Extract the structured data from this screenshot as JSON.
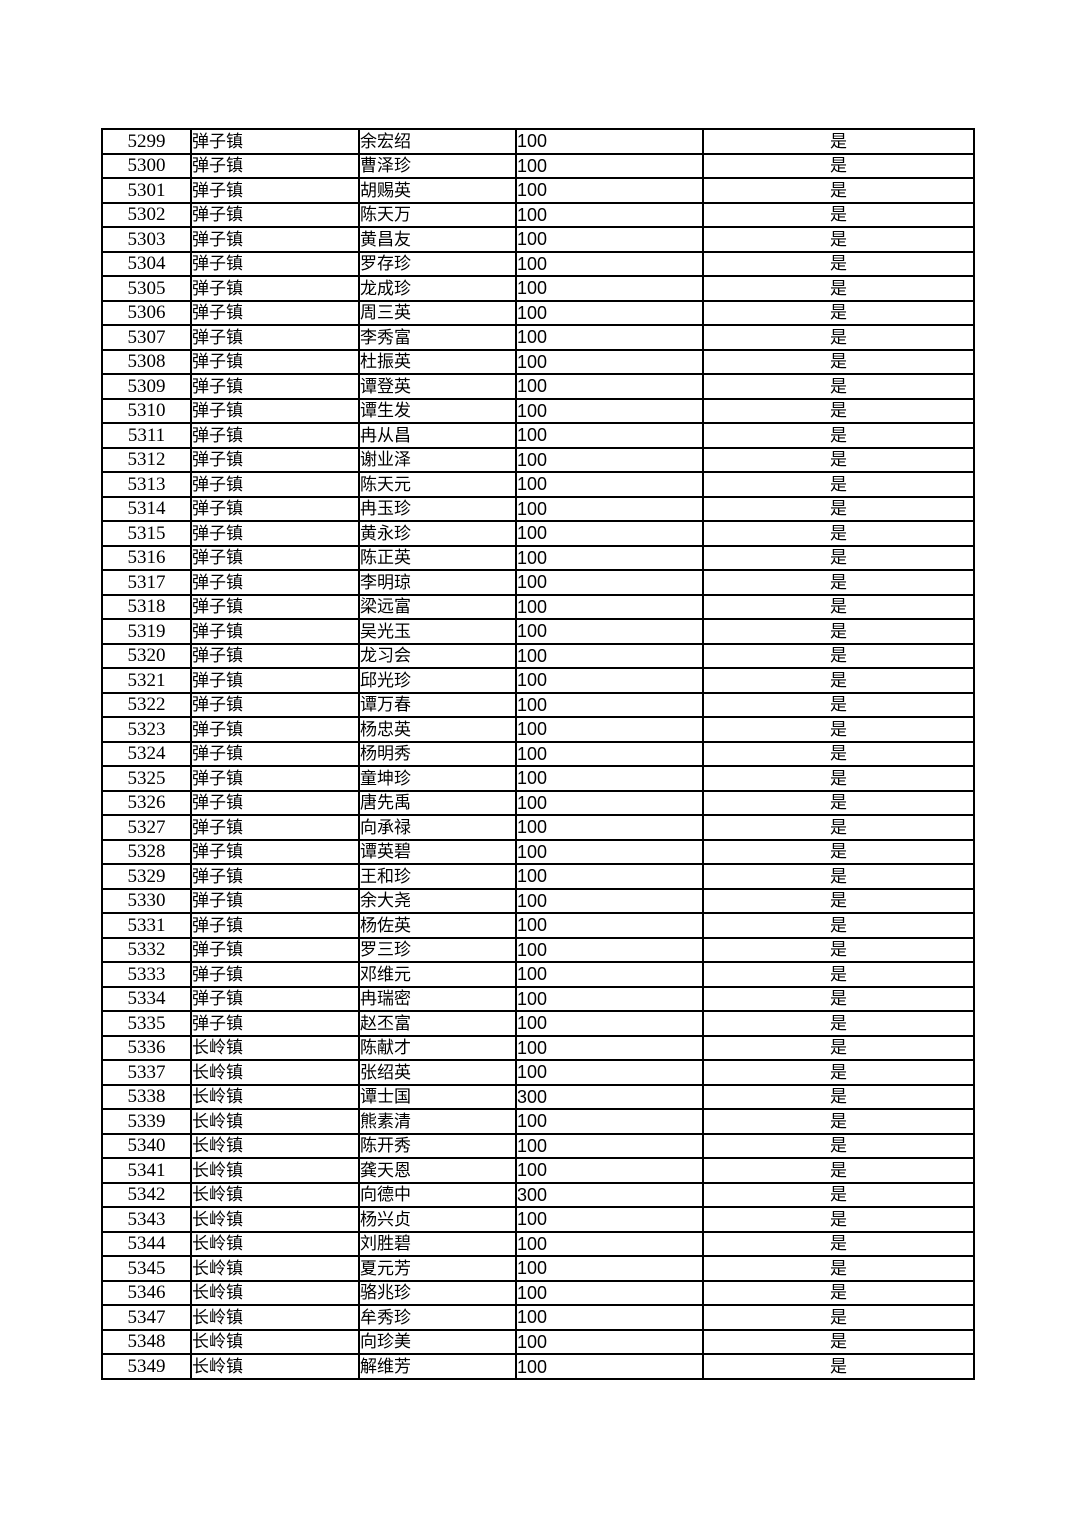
{
  "page": {
    "background_color": "#ffffff",
    "grid_color": "#000000",
    "text_color": "#000000"
  },
  "table": {
    "column_keys": [
      "row-number",
      "town",
      "person-name",
      "amount",
      "confirmed"
    ],
    "rows": [
      [
        "5299",
        "弹子镇",
        "余宏绍",
        "100",
        "是"
      ],
      [
        "5300",
        "弹子镇",
        "曹泽珍",
        "100",
        "是"
      ],
      [
        "5301",
        "弹子镇",
        "胡赐英",
        "100",
        "是"
      ],
      [
        "5302",
        "弹子镇",
        "陈天万",
        "100",
        "是"
      ],
      [
        "5303",
        "弹子镇",
        "黄昌友",
        "100",
        "是"
      ],
      [
        "5304",
        "弹子镇",
        "罗存珍",
        "100",
        "是"
      ],
      [
        "5305",
        "弹子镇",
        "龙成珍",
        "100",
        "是"
      ],
      [
        "5306",
        "弹子镇",
        "周三英",
        "100",
        "是"
      ],
      [
        "5307",
        "弹子镇",
        "李秀富",
        "100",
        "是"
      ],
      [
        "5308",
        "弹子镇",
        "杜振英",
        "100",
        "是"
      ],
      [
        "5309",
        "弹子镇",
        "谭登英",
        "100",
        "是"
      ],
      [
        "5310",
        "弹子镇",
        "谭生发",
        "100",
        "是"
      ],
      [
        "5311",
        "弹子镇",
        "冉从昌",
        "100",
        "是"
      ],
      [
        "5312",
        "弹子镇",
        "谢业泽",
        "100",
        "是"
      ],
      [
        "5313",
        "弹子镇",
        "陈天元",
        "100",
        "是"
      ],
      [
        "5314",
        "弹子镇",
        "冉玉珍",
        "100",
        "是"
      ],
      [
        "5315",
        "弹子镇",
        "黄永珍",
        "100",
        "是"
      ],
      [
        "5316",
        "弹子镇",
        "陈正英",
        "100",
        "是"
      ],
      [
        "5317",
        "弹子镇",
        "李明琼",
        "100",
        "是"
      ],
      [
        "5318",
        "弹子镇",
        "梁远富",
        "100",
        "是"
      ],
      [
        "5319",
        "弹子镇",
        "吴光玉",
        "100",
        "是"
      ],
      [
        "5320",
        "弹子镇",
        "龙习会",
        "100",
        "是"
      ],
      [
        "5321",
        "弹子镇",
        "邱光珍",
        "100",
        "是"
      ],
      [
        "5322",
        "弹子镇",
        "谭万春",
        "100",
        "是"
      ],
      [
        "5323",
        "弹子镇",
        "杨忠英",
        "100",
        "是"
      ],
      [
        "5324",
        "弹子镇",
        "杨明秀",
        "100",
        "是"
      ],
      [
        "5325",
        "弹子镇",
        "童坤珍",
        "100",
        "是"
      ],
      [
        "5326",
        "弹子镇",
        "唐先禹",
        "100",
        "是"
      ],
      [
        "5327",
        "弹子镇",
        "向承禄",
        "100",
        "是"
      ],
      [
        "5328",
        "弹子镇",
        "谭英碧",
        "100",
        "是"
      ],
      [
        "5329",
        "弹子镇",
        "王和珍",
        "100",
        "是"
      ],
      [
        "5330",
        "弹子镇",
        "余大尧",
        "100",
        "是"
      ],
      [
        "5331",
        "弹子镇",
        "杨佐英",
        "100",
        "是"
      ],
      [
        "5332",
        "弹子镇",
        "罗三珍",
        "100",
        "是"
      ],
      [
        "5333",
        "弹子镇",
        "邓维元",
        "100",
        "是"
      ],
      [
        "5334",
        "弹子镇",
        "冉瑞密",
        "100",
        "是"
      ],
      [
        "5335",
        "弹子镇",
        "赵丕富",
        "100",
        "是"
      ],
      [
        "5336",
        "长岭镇",
        "陈献才",
        "100",
        "是"
      ],
      [
        "5337",
        "长岭镇",
        "张绍英",
        "100",
        "是"
      ],
      [
        "5338",
        "长岭镇",
        "谭士国",
        "300",
        "是"
      ],
      [
        "5339",
        "长岭镇",
        "熊素清",
        "100",
        "是"
      ],
      [
        "5340",
        "长岭镇",
        "陈开秀",
        "100",
        "是"
      ],
      [
        "5341",
        "长岭镇",
        "龚天恩",
        "100",
        "是"
      ],
      [
        "5342",
        "长岭镇",
        "向德中",
        "300",
        "是"
      ],
      [
        "5343",
        "长岭镇",
        "杨兴贞",
        "100",
        "是"
      ],
      [
        "5344",
        "长岭镇",
        "刘胜碧",
        "100",
        "是"
      ],
      [
        "5345",
        "长岭镇",
        "夏元芳",
        "100",
        "是"
      ],
      [
        "5346",
        "长岭镇",
        "骆兆珍",
        "100",
        "是"
      ],
      [
        "5347",
        "长岭镇",
        "牟秀珍",
        "100",
        "是"
      ],
      [
        "5348",
        "长岭镇",
        "向珍美",
        "100",
        "是"
      ],
      [
        "5349",
        "长岭镇",
        "解维芳",
        "100",
        "是"
      ]
    ]
  }
}
